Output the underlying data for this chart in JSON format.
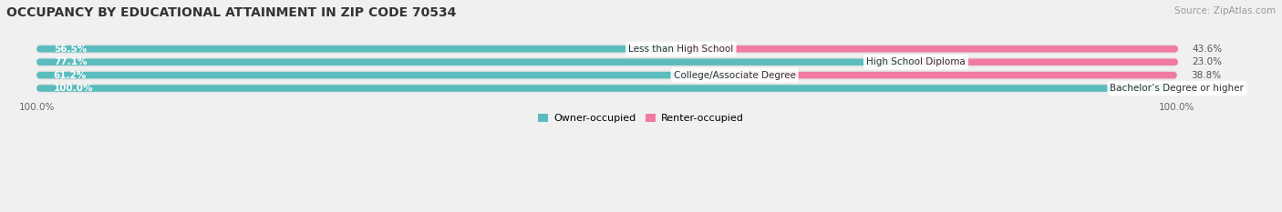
{
  "title": "OCCUPANCY BY EDUCATIONAL ATTAINMENT IN ZIP CODE 70534",
  "source": "Source: ZipAtlas.com",
  "categories": [
    "Less than High School",
    "High School Diploma",
    "College/Associate Degree",
    "Bachelor’s Degree or higher"
  ],
  "owner_values": [
    56.5,
    77.1,
    61.2,
    100.0
  ],
  "renter_values": [
    43.6,
    23.0,
    38.8,
    0.0
  ],
  "owner_color": "#5bbcbe",
  "renter_color": "#f07aa0",
  "owner_label": "Owner-occupied",
  "renter_label": "Renter-occupied",
  "background_color": "#f0f0f0",
  "row_bg_color": "#e4e4e4",
  "title_fontsize": 10,
  "bar_label_fontsize": 7.5,
  "cat_label_fontsize": 7.5,
  "axis_label_fontsize": 7.5,
  "figsize": [
    14.06,
    2.33
  ],
  "dpi": 100
}
